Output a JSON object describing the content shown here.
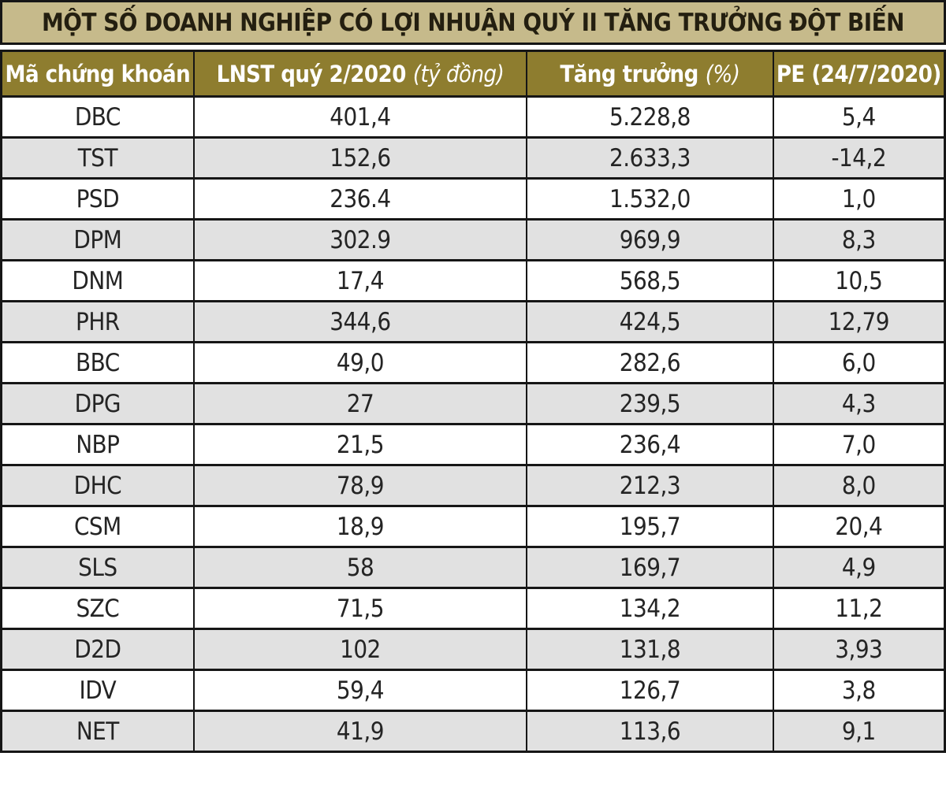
{
  "title": "MỘT SỐ DOANH NGHIỆP CÓ LỢI NHUẬN QUÝ II TĂNG TRƯỞNG ĐỘT BIẾN",
  "columns": [
    {
      "main": "Mã chứng khoán",
      "note": ""
    },
    {
      "main": "LNST quý 2/2020",
      "note": "(tỷ đồng)"
    },
    {
      "main": "Tăng trưởng",
      "note": "(%)"
    },
    {
      "main": "PE (24/7/2020)",
      "note": ""
    }
  ],
  "rows": [
    {
      "ticker": "DBC",
      "lnst": "401,4",
      "growth": "5.228,8",
      "pe": "5,4"
    },
    {
      "ticker": "TST",
      "lnst": "152,6",
      "growth": "2.633,3",
      "pe": "-14,2"
    },
    {
      "ticker": "PSD",
      "lnst": "236.4",
      "growth": "1.532,0",
      "pe": "1,0"
    },
    {
      "ticker": "DPM",
      "lnst": "302.9",
      "growth": "969,9",
      "pe": "8,3"
    },
    {
      "ticker": "DNM",
      "lnst": "17,4",
      "growth": "568,5",
      "pe": "10,5"
    },
    {
      "ticker": "PHR",
      "lnst": "344,6",
      "growth": "424,5",
      "pe": "12,79"
    },
    {
      "ticker": "BBC",
      "lnst": "49,0",
      "growth": "282,6",
      "pe": "6,0"
    },
    {
      "ticker": "DPG",
      "lnst": "27",
      "growth": "239,5",
      "pe": "4,3"
    },
    {
      "ticker": "NBP",
      "lnst": "21,5",
      "growth": "236,4",
      "pe": "7,0"
    },
    {
      "ticker": "DHC",
      "lnst": "78,9",
      "growth": "212,3",
      "pe": "8,0"
    },
    {
      "ticker": "CSM",
      "lnst": "18,9",
      "growth": "195,7",
      "pe": "20,4"
    },
    {
      "ticker": "SLS",
      "lnst": "58",
      "growth": "169,7",
      "pe": "4,9"
    },
    {
      "ticker": "SZC",
      "lnst": "71,5",
      "growth": "134,2",
      "pe": "11,2"
    },
    {
      "ticker": "D2D",
      "lnst": "102",
      "growth": "131,8",
      "pe": "3,93"
    },
    {
      "ticker": "IDV",
      "lnst": "59,4",
      "growth": "126,7",
      "pe": "3,8"
    },
    {
      "ticker": "NET",
      "lnst": "41,9",
      "growth": "113,6",
      "pe": "9,1"
    }
  ],
  "colors": {
    "title_bg": "#c6ba8b",
    "title_text": "#241f10",
    "header_bg": "#8e7d2f",
    "header_text": "#ffffff",
    "row_bg": "#ffffff",
    "row_alt_bg": "#e1e1e1",
    "border": "#161616",
    "body_text": "#242424"
  },
  "chart_data": {
    "type": "table",
    "title": "MỘT SỐ DOANH NGHIỆP CÓ LỢI NHUẬN QUÝ II TĂNG TRƯỞNG ĐỘT BIẾN",
    "columns": [
      "Mã chứng khoán",
      "LNST quý 2/2020 (tỷ đồng)",
      "Tăng trưởng (%)",
      "PE (24/7/2020)"
    ],
    "rows": [
      [
        "DBC",
        "401,4",
        "5.228,8",
        "5,4"
      ],
      [
        "TST",
        "152,6",
        "2.633,3",
        "-14,2"
      ],
      [
        "PSD",
        "236.4",
        "1.532,0",
        "1,0"
      ],
      [
        "DPM",
        "302.9",
        "969,9",
        "8,3"
      ],
      [
        "DNM",
        "17,4",
        "568,5",
        "10,5"
      ],
      [
        "PHR",
        "344,6",
        "424,5",
        "12,79"
      ],
      [
        "BBC",
        "49,0",
        "282,6",
        "6,0"
      ],
      [
        "DPG",
        "27",
        "239,5",
        "4,3"
      ],
      [
        "NBP",
        "21,5",
        "236,4",
        "7,0"
      ],
      [
        "DHC",
        "78,9",
        "212,3",
        "8,0"
      ],
      [
        "CSM",
        "18,9",
        "195,7",
        "20,4"
      ],
      [
        "SLS",
        "58",
        "169,7",
        "4,9"
      ],
      [
        "SZC",
        "71,5",
        "134,2",
        "11,2"
      ],
      [
        "D2D",
        "102",
        "131,8",
        "3,93"
      ],
      [
        "IDV",
        "59,4",
        "126,7",
        "3,8"
      ],
      [
        "NET",
        "41,9",
        "113,6",
        "9,1"
      ]
    ]
  }
}
